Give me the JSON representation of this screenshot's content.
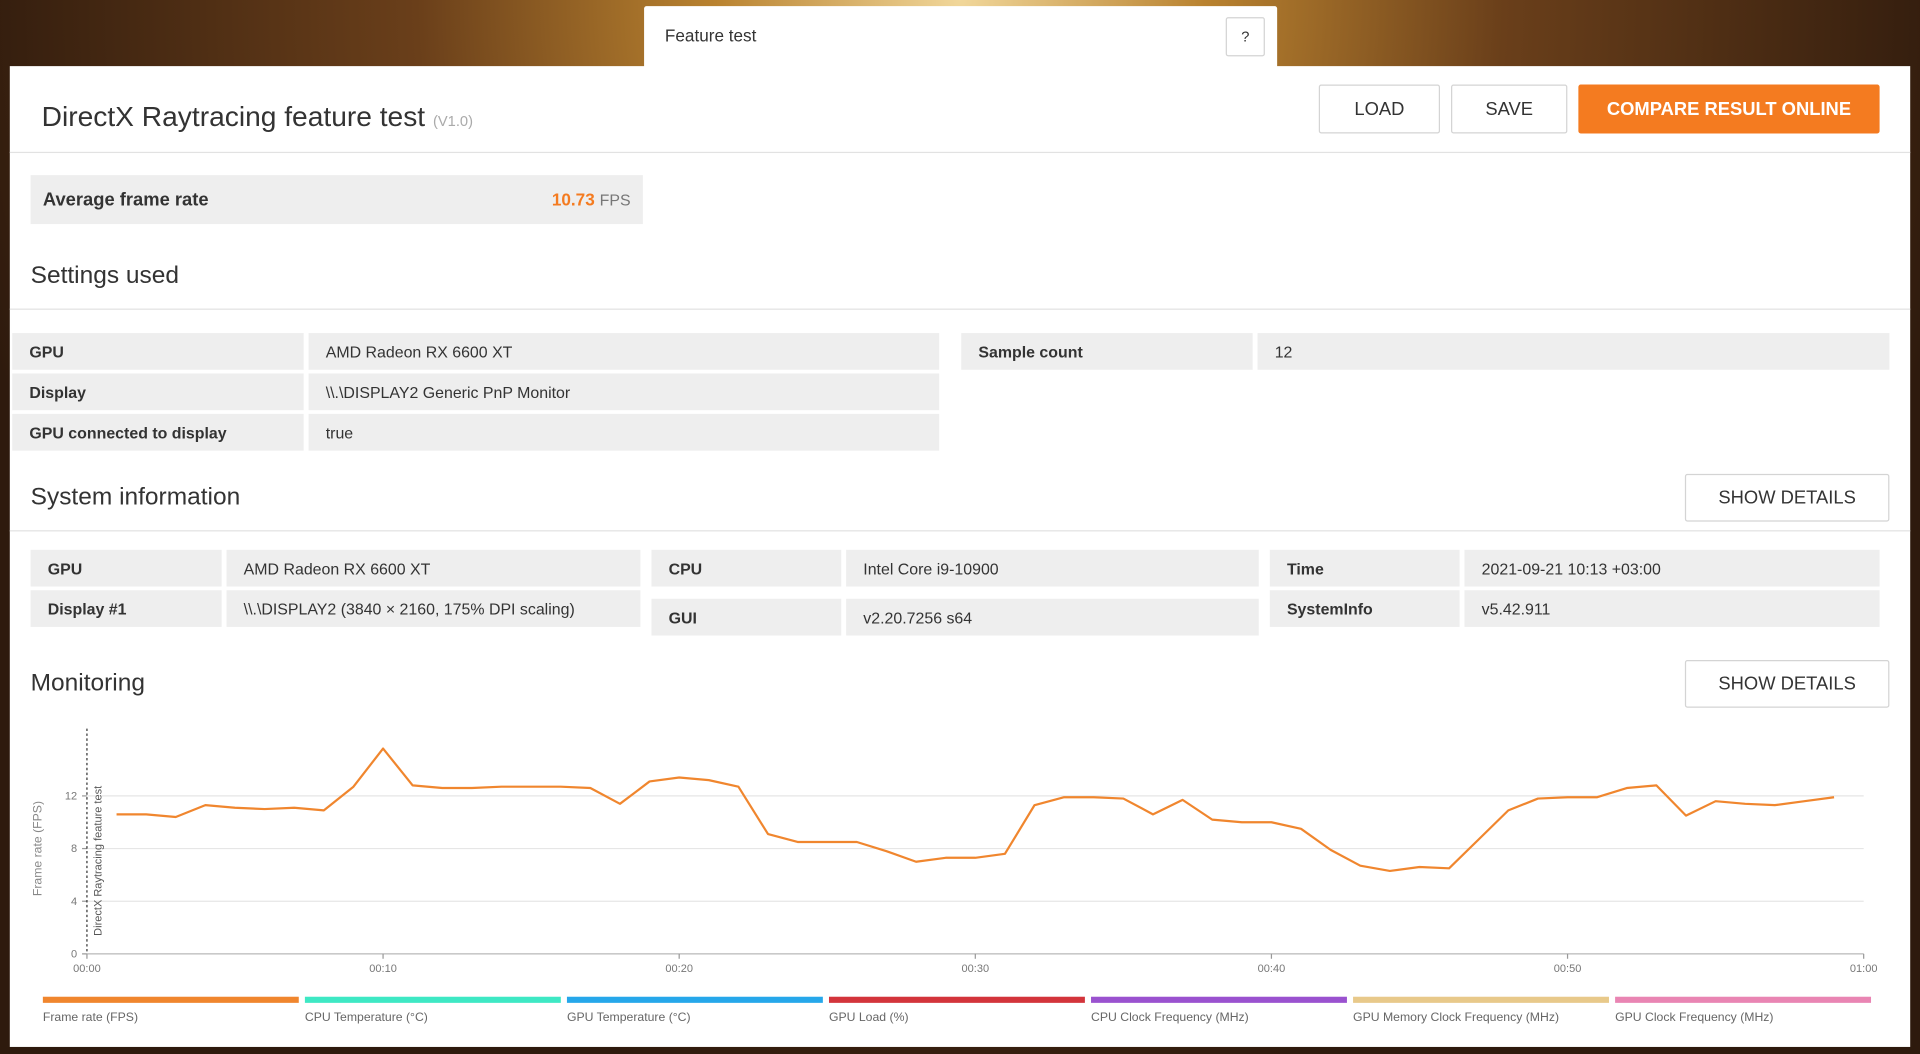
{
  "tab": {
    "title": "Feature test",
    "help": "?"
  },
  "header": {
    "title": "DirectX Raytracing feature test",
    "version": "(V1.0)",
    "buttons": [
      "LOAD",
      "SAVE",
      "COMPARE RESULT ONLINE"
    ]
  },
  "summary": {
    "label": "Average frame rate",
    "value": 10.73,
    "unit": "FPS"
  },
  "settings": {
    "title": "Settings used",
    "rows": [
      [
        "GPU",
        "AMD Radeon RX 6600 XT"
      ],
      [
        "Display",
        "\\\\.\\DISPLAY2 Generic PnP Monitor"
      ],
      [
        "GPU connected to display",
        "true"
      ]
    ],
    "side_rows": [
      [
        "Sample count",
        12
      ]
    ]
  },
  "system_information": {
    "title": "System information",
    "button": "SHOW DETAILS",
    "columns": [
      [
        [
          "GPU",
          "AMD Radeon RX 6600 XT"
        ],
        [
          "Display #1",
          "\\\\.\\DISPLAY2 (3840 × 2160, 175% DPI scaling)"
        ]
      ],
      [
        [
          "CPU",
          "Intel Core i9-10900"
        ],
        [
          "GUI",
          "v2.20.7256 s64"
        ]
      ],
      [
        [
          "Time",
          "2021-09-21 10:13 +03:00"
        ],
        [
          "SystemInfo",
          "v5.42.911"
        ]
      ]
    ]
  },
  "monitoring": {
    "title": "Monitoring",
    "button": "SHOW DETAILS"
  },
  "chart_data": {
    "type": "line",
    "y_label": "Frame rate (FPS)",
    "annotations": [
      {
        "x": 0,
        "text": "DirectX Raytracing feature test"
      }
    ],
    "x": [
      1,
      2,
      3,
      4,
      5,
      6,
      7,
      8,
      9,
      10,
      11,
      12,
      13,
      14,
      15,
      16,
      17,
      18,
      19,
      20,
      21,
      22,
      23,
      24,
      25,
      26,
      27,
      28,
      29,
      30,
      31,
      32,
      33,
      34,
      35,
      36,
      37,
      38,
      39,
      40,
      41,
      42,
      43,
      44,
      45,
      46,
      47,
      48,
      49,
      50,
      51,
      52,
      53,
      54,
      55,
      56,
      57,
      58,
      59
    ],
    "series": [
      {
        "color": "#f0862e",
        "values": [
          10.6,
          10.6,
          10.4,
          11.3,
          11.1,
          11.0,
          11.1,
          10.9,
          12.7,
          15.6,
          12.8,
          12.6,
          12.6,
          12.7,
          12.7,
          12.7,
          12.6,
          11.4,
          13.1,
          13.4,
          13.2,
          12.7,
          9.1,
          8.5,
          8.5,
          8.5,
          7.8,
          7.0,
          7.3,
          7.3,
          7.6,
          11.3,
          11.9,
          11.9,
          11.8,
          10.6,
          11.7,
          10.2,
          10.0,
          10.0,
          9.5,
          7.9,
          6.7,
          6.3,
          6.6,
          6.5,
          8.7,
          10.9,
          11.8,
          11.9,
          11.9,
          12.6,
          12.8,
          10.5,
          11.6,
          11.4,
          11.3,
          11.6,
          11.9
        ]
      }
    ],
    "xlim": [
      0,
      60
    ],
    "xticks": [
      {
        "value": 0,
        "label": "00:00"
      },
      {
        "value": 10,
        "label": "00:10"
      },
      {
        "value": 20,
        "label": "00:20"
      },
      {
        "value": 30,
        "label": "00:30"
      },
      {
        "value": 40,
        "label": "00:40"
      },
      {
        "value": 50,
        "label": "00:50"
      },
      {
        "value": 60,
        "label": "01:00"
      }
    ],
    "ylim": [
      0,
      16
    ],
    "yticks": [
      0,
      4,
      8,
      12
    ],
    "grid": true,
    "legend": [
      {
        "name": "Frame rate (FPS)",
        "color": "#f0862e"
      },
      {
        "name": "CPU Temperature (°C)",
        "color": "#3ee8c4"
      },
      {
        "name": "GPU Temperature (°C)",
        "color": "#26a7ea"
      },
      {
        "name": "GPU Load (%)",
        "color": "#d3343b"
      },
      {
        "name": "CPU Clock Frequency (MHz)",
        "color": "#9a52cf"
      },
      {
        "name": "GPU Memory Clock Frequency (MHz)",
        "color": "#e8c98a"
      },
      {
        "name": "GPU Clock Frequency (MHz)",
        "color": "#e985b3"
      }
    ]
  }
}
